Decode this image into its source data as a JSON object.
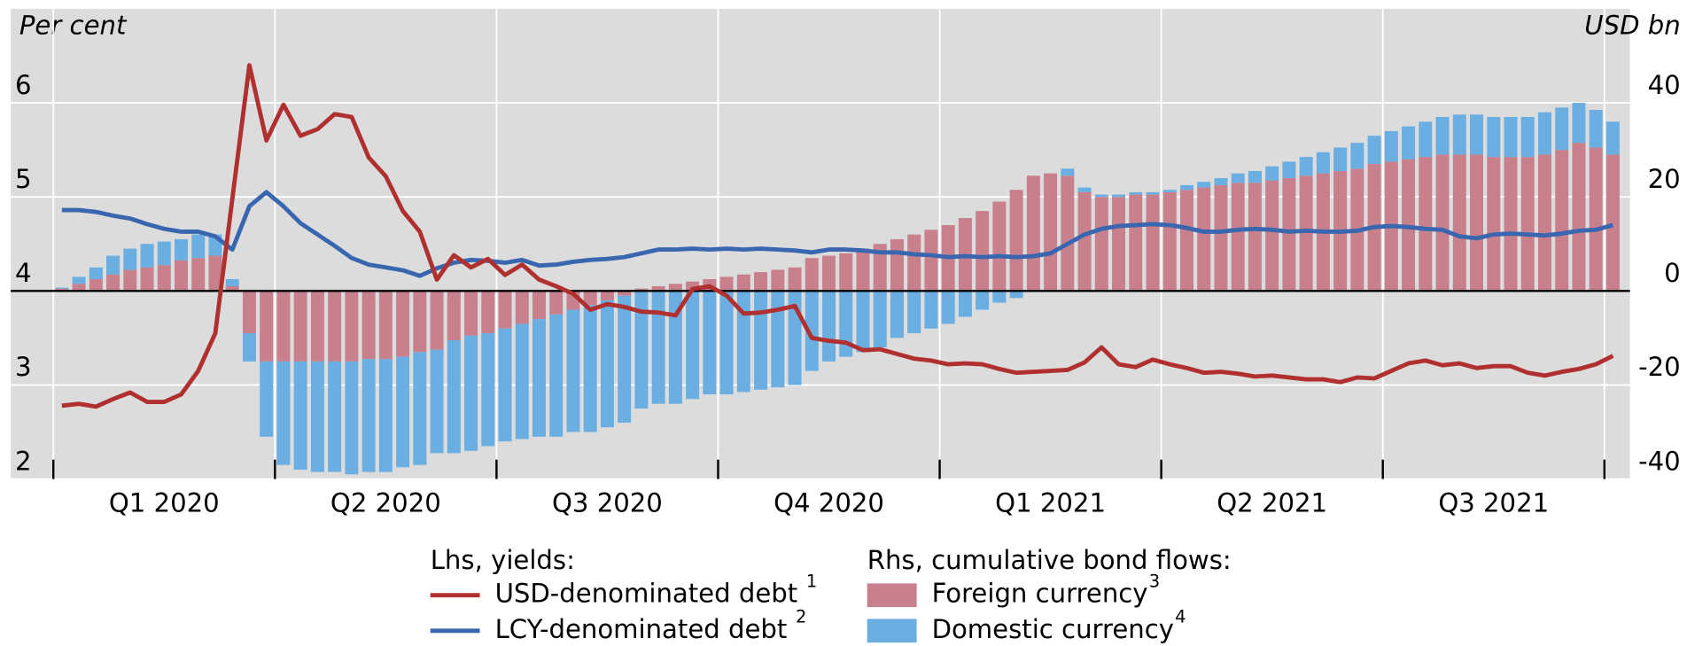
{
  "chart_data": {
    "type": "combo",
    "ylabel": "Per cent",
    "y2label": "USD bn",
    "x": [
      0,
      1,
      2,
      3,
      4,
      5,
      6,
      7,
      8,
      9,
      10,
      11,
      12,
      13,
      14,
      15,
      16,
      17,
      18,
      19,
      20,
      21,
      22,
      23,
      24,
      25,
      26,
      27,
      28,
      29,
      30,
      31,
      32,
      33,
      34,
      35,
      36,
      37,
      38,
      39,
      40,
      41,
      42,
      43,
      44,
      45,
      46,
      47,
      48,
      49,
      50,
      51,
      52,
      53,
      54,
      55,
      56,
      57,
      58,
      59,
      60,
      61,
      62,
      63,
      64,
      65,
      66,
      67,
      68,
      69,
      70,
      71,
      72,
      73,
      74,
      75,
      76,
      77,
      78,
      79,
      80,
      81,
      82,
      83,
      84,
      85,
      86,
      87,
      88,
      89,
      90,
      91
    ],
    "xlim": [
      -3,
      92
    ],
    "xticks": [
      -0.5,
      12.5,
      25.5,
      38.5,
      51.5,
      64.5,
      77.5,
      90.5
    ],
    "xtick_labels": [
      {
        "value": 6,
        "label": "Q1 2020"
      },
      {
        "value": 19,
        "label": "Q2 2020"
      },
      {
        "value": 32,
        "label": "Q3 2020"
      },
      {
        "value": 45,
        "label": "Q4 2020"
      },
      {
        "value": 58,
        "label": "Q1 2021"
      },
      {
        "value": 71,
        "label": "Q2 2021"
      },
      {
        "value": 84,
        "label": "Q3 2021"
      }
    ],
    "ylim": [
      2,
      7
    ],
    "yticks": [
      2,
      3,
      4,
      5,
      6
    ],
    "y2lim": [
      -40,
      60
    ],
    "y2ticks": [
      -40,
      -20,
      0,
      20,
      40
    ],
    "grid": true,
    "legend_groups": [
      "Lhs, yields:",
      "Rhs, cumulative bond flows:"
    ],
    "series": [
      {
        "name": "Foreign currency",
        "footnote": "3",
        "type": "bar",
        "axis": "y2",
        "color": "#c8808d",
        "values": [
          0.5,
          1.5,
          2.5,
          3.5,
          4.5,
          5,
          5.5,
          6.5,
          7,
          7.5,
          1,
          -9,
          -15,
          -15,
          -15,
          -15,
          -15,
          -15,
          -14.5,
          -14.5,
          -14,
          -13,
          -12.5,
          -10.5,
          -9.5,
          -9,
          -8,
          -7,
          -6,
          -5,
          -4,
          -3,
          -2,
          -1,
          0.5,
          1,
          1.5,
          2,
          2.5,
          3,
          3.5,
          4,
          4.5,
          5,
          7,
          7.5,
          8,
          9,
          10,
          11,
          12,
          13,
          14,
          15.5,
          17,
          19,
          21.5,
          24.5,
          25,
          24.5,
          21,
          20,
          20,
          20.5,
          20.5,
          21,
          21.5,
          22,
          22.5,
          23,
          23,
          23.5,
          24,
          24.5,
          25,
          25.5,
          26,
          27,
          27.5,
          28,
          28.5,
          29,
          29,
          29,
          28.5,
          28.5,
          28.5,
          29,
          30,
          31.5,
          30.5,
          29
        ]
      },
      {
        "name": "Domestic currency",
        "footnote": "4",
        "type": "bar",
        "axis": "y2",
        "color": "#6aaee2",
        "values": [
          0.2,
          1.5,
          2.5,
          4,
          4.5,
          5,
          5,
          4.5,
          5,
          4.5,
          1.5,
          -6,
          -16,
          -22,
          -23,
          -23.5,
          -23.5,
          -24,
          -24,
          -24,
          -23.5,
          -24,
          -22,
          -24,
          -24.5,
          -24,
          -24,
          -24.5,
          -25,
          -26,
          -26,
          -27,
          -27,
          -27,
          -25,
          -24,
          -24,
          -23,
          -22,
          -22,
          -21.5,
          -21,
          -20.5,
          -20,
          -17,
          -15,
          -14,
          -13,
          -12,
          -10,
          -9,
          -8,
          -7,
          -5.5,
          -4,
          -2.5,
          -1.5,
          0,
          0,
          1.5,
          1,
          0.5,
          0.5,
          0.5,
          0.5,
          0.5,
          1,
          1.2,
          1.5,
          2,
          2.5,
          3,
          3.5,
          4,
          4.5,
          5,
          5.5,
          6,
          6.5,
          7,
          7.5,
          8,
          8.5,
          8.5,
          8.5,
          8.5,
          8.5,
          9,
          9,
          8.5,
          8,
          7
        ]
      },
      {
        "name": "LCY-denominated debt",
        "footnote": "2",
        "type": "line",
        "axis": "y",
        "color": "#3a66b0",
        "values": [
          4.86,
          4.86,
          4.84,
          4.8,
          4.77,
          4.71,
          4.66,
          4.63,
          4.63,
          4.58,
          4.44,
          4.9,
          5.05,
          4.9,
          4.72,
          4.6,
          4.48,
          4.35,
          4.28,
          4.25,
          4.22,
          4.16,
          4.24,
          4.3,
          4.33,
          4.32,
          4.3,
          4.33,
          4.27,
          4.28,
          4.31,
          4.33,
          4.34,
          4.36,
          4.4,
          4.44,
          4.44,
          4.45,
          4.44,
          4.45,
          4.44,
          4.45,
          4.44,
          4.43,
          4.41,
          4.44,
          4.44,
          4.43,
          4.41,
          4.41,
          4.39,
          4.38,
          4.36,
          4.37,
          4.36,
          4.37,
          4.36,
          4.37,
          4.4,
          4.5,
          4.6,
          4.66,
          4.69,
          4.7,
          4.71,
          4.7,
          4.67,
          4.63,
          4.63,
          4.65,
          4.66,
          4.65,
          4.63,
          4.64,
          4.63,
          4.63,
          4.64,
          4.68,
          4.69,
          4.68,
          4.66,
          4.65,
          4.58,
          4.56,
          4.6,
          4.61,
          4.6,
          4.59,
          4.61,
          4.64,
          4.65,
          4.7
        ]
      },
      {
        "name": "USD-denominated debt",
        "footnote": "1",
        "type": "line",
        "axis": "y",
        "color": "#b03030",
        "values": [
          2.78,
          2.8,
          2.77,
          2.85,
          2.92,
          2.82,
          2.82,
          2.9,
          3.15,
          3.55,
          4.98,
          6.4,
          5.6,
          5.98,
          5.65,
          5.72,
          5.88,
          5.85,
          5.42,
          5.22,
          4.85,
          4.63,
          4.12,
          4.38,
          4.25,
          4.34,
          4.17,
          4.28,
          4.12,
          4.05,
          3.97,
          3.8,
          3.86,
          3.83,
          3.78,
          3.77,
          3.74,
          4.02,
          4.05,
          3.95,
          3.76,
          3.77,
          3.8,
          3.84,
          3.5,
          3.47,
          3.45,
          3.37,
          3.38,
          3.33,
          3.28,
          3.26,
          3.22,
          3.23,
          3.22,
          3.17,
          3.13,
          3.14,
          3.15,
          3.16,
          3.24,
          3.4,
          3.22,
          3.19,
          3.27,
          3.22,
          3.18,
          3.13,
          3.14,
          3.12,
          3.09,
          3.1,
          3.08,
          3.06,
          3.06,
          3.03,
          3.08,
          3.07,
          3.15,
          3.23,
          3.26,
          3.21,
          3.23,
          3.18,
          3.2,
          3.2,
          3.13,
          3.1,
          3.14,
          3.17,
          3.22,
          3.31
        ]
      }
    ]
  }
}
